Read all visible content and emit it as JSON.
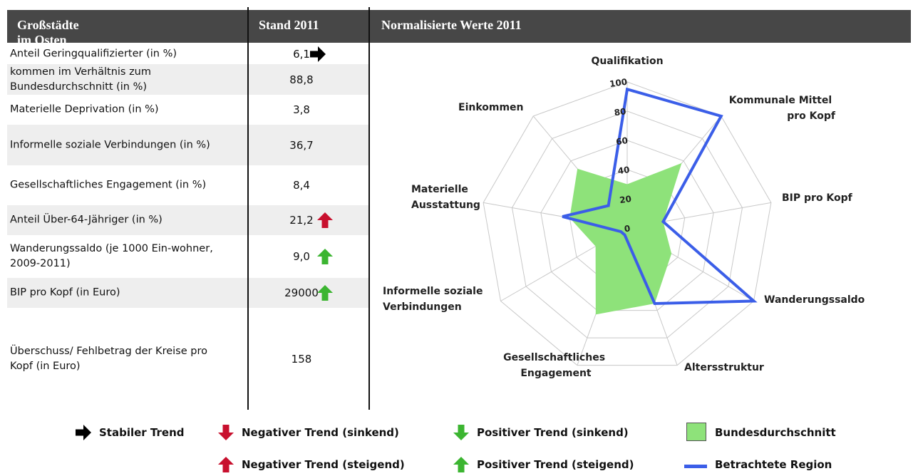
{
  "table": {
    "headers": [
      "Großstädte im Osten",
      "Stand 2011",
      "Normalisierte Werte 2011"
    ],
    "rows": [
      {
        "label": "Anteil Geringqualifizierter (in %)",
        "value": "6,1",
        "trend": "stable"
      },
      {
        "label": "kommen im Verhältnis zum Bundesdurchschnitt (in %)",
        "value": "88,8"
      },
      {
        "label": "Materielle Deprivation (in %)",
        "value": "3,8"
      },
      {
        "label": "Informelle soziale Verbindungen (in %)",
        "value": "36,7"
      },
      {
        "label": "Gesellschaftliches Engagement (in %)",
        "value": "8,4"
      },
      {
        "label": "Anteil Über-64-Jähriger (in %)",
        "value": "21,2",
        "trend": "negative_rising"
      },
      {
        "label": "Wanderungssaldo (je 1000 Ein-wohner, 2009-2011)",
        "value": "9,0",
        "trend": "positive_rising"
      },
      {
        "label": "BIP pro Kopf (in Euro)",
        "value": "29000",
        "trend": "positive_rising"
      },
      {
        "label": "Überschuss/ Fehlbetrag der Kreise pro Kopf (in Euro)",
        "value": "158"
      }
    ]
  },
  "chart_data": {
    "type": "radar",
    "categories": [
      "Qualifikation",
      "Kommunale Mittel pro Kopf",
      "BIP pro Kopf",
      "Wanderungssaldo",
      "Altersstruktur",
      "Gesellschaftliches Engagement",
      "Informelle soziale Verbindungen",
      "Materielle Ausstattung",
      "Einkommen"
    ],
    "series": [
      {
        "name": "Bundesdurchschnitt",
        "color": "#8ee27a",
        "values": [
          30,
          58,
          25,
          35,
          55,
          63,
          25,
          40,
          53
        ]
      },
      {
        "name": "Betrachtete Region",
        "color": "#3b5ee8",
        "values": [
          95,
          100,
          25,
          100,
          55,
          5,
          5,
          45,
          20
        ]
      }
    ],
    "rlim": [
      0,
      100
    ],
    "rticks": [
      0,
      20,
      40,
      60,
      80,
      100
    ],
    "grid": true
  },
  "legend": {
    "stable": "Stabiler Trend",
    "negative_falling": "Negativer Trend (sinkend)",
    "positive_falling": "Positiver Trend (sinkend)",
    "negative_rising": "Negativer Trend (steigend)",
    "positive_rising": "Positiver Trend (steigend)"
  }
}
